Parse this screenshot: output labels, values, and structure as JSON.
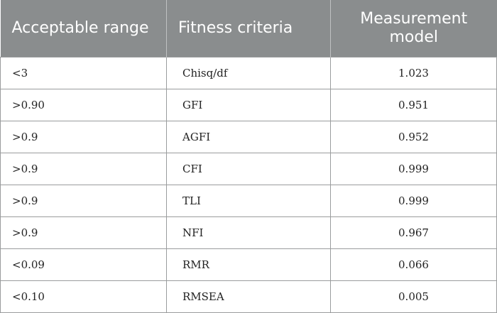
{
  "table": {
    "headers": {
      "range": "Acceptable range",
      "criteria": "Fitness criteria",
      "model": "Measurement model"
    },
    "rows": [
      {
        "range": "<3",
        "criteria": "Chisq/df",
        "model": "1.023"
      },
      {
        "range": ">0.90",
        "criteria": "GFI",
        "model": "0.951"
      },
      {
        "range": ">0.9",
        "criteria": "AGFI",
        "model": "0.952"
      },
      {
        "range": ">0.9",
        "criteria": "CFI",
        "model": "0.999"
      },
      {
        "range": ">0.9",
        "criteria": "TLI",
        "model": "0.999"
      },
      {
        "range": ">0.9",
        "criteria": "NFI",
        "model": "0.967"
      },
      {
        "range": "<0.09",
        "criteria": "RMR",
        "model": "0.066"
      },
      {
        "range": "<0.10",
        "criteria": "RMSEA",
        "model": "0.005"
      }
    ]
  },
  "colors": {
    "header_bg": "#8a8d8e",
    "header_text": "#ffffff",
    "border": "#9a9c9d"
  }
}
